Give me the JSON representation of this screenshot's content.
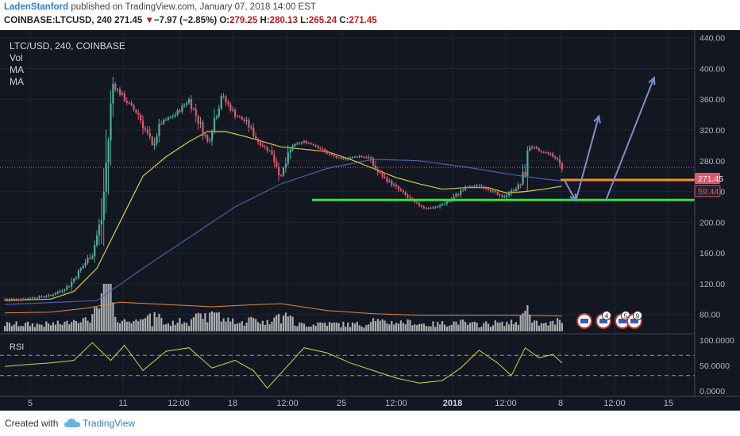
{
  "header": {
    "author": "LadenStanford",
    "published_text": " published on TradingView.com, January 07, 2018 14:00 EST",
    "symbol_interval": "COINBASE:LTCUSD, 240",
    "last": "271.45",
    "change_arrow": "▼",
    "change": "−7.97 (−2.85%)",
    "open_label": "O:",
    "open": "279.25",
    "high_label": "H:",
    "high": "280.13",
    "low_label": "L:",
    "low": "265.24",
    "close_label": "C:",
    "close": "271.45"
  },
  "legend": {
    "title": "LTC/USD, 240, COINBASE",
    "vol": "Vol",
    "ma1": "MA",
    "ma2": "MA"
  },
  "price_badges": {
    "last_price": "271.45",
    "countdown": "59:44"
  },
  "rsi_panel": {
    "label": "RSI"
  },
  "footer": {
    "created_with": "Created with",
    "brand": "TradingView"
  },
  "colors": {
    "background": "#131722",
    "up_candle": "#4caf9a",
    "down_candle": "#e0566b",
    "ma_fast": "#d7d13a",
    "ma_slow": "#4d5fa8",
    "volume": "#c8c8c8",
    "volume_ma": "#e08a3c",
    "support_line": "#32e632",
    "resistance_line": "#f5921e",
    "projection_arrows": "#7f8fc8",
    "rsi_line": "#d8d24a",
    "last_price_badge": "#e0566b"
  },
  "event_markers": [
    "4",
    "5",
    "9"
  ],
  "chart_data": {
    "type": "candlestick",
    "title": "LTC/USD, 240, COINBASE",
    "price_axis": {
      "ticks": [
        "440.00",
        "400.00",
        "360.00",
        "320.00",
        "280.00",
        "240.00",
        "200.00",
        "160.00",
        "120.00",
        "80.00"
      ],
      "range": [
        58,
        450
      ]
    },
    "rsi_axis": {
      "ticks": [
        "100.0000",
        "50.0000",
        "0.0000"
      ],
      "range": [
        -8,
        108
      ],
      "bands": [
        70,
        30
      ]
    },
    "time_axis": {
      "ticks": [
        "5",
        "11",
        "12:00",
        "18",
        "12:00",
        "25",
        "12:00",
        "2018",
        "12:00",
        "8",
        "12:00",
        "15"
      ]
    },
    "price_path": [
      [
        0,
        100
      ],
      [
        8,
        100
      ],
      [
        13,
        102
      ],
      [
        20,
        105
      ],
      [
        25,
        112
      ],
      [
        28,
        118
      ],
      [
        32,
        135
      ],
      [
        38,
        160
      ],
      [
        42,
        205
      ],
      [
        47,
        380
      ],
      [
        52,
        360
      ],
      [
        58,
        340
      ],
      [
        64,
        300
      ],
      [
        68,
        330
      ],
      [
        74,
        340
      ],
      [
        80,
        360
      ],
      [
        88,
        305
      ],
      [
        94,
        365
      ],
      [
        100,
        340
      ],
      [
        105,
        330
      ],
      [
        110,
        305
      ],
      [
        116,
        290
      ],
      [
        120,
        260
      ],
      [
        125,
        300
      ],
      [
        130,
        305
      ],
      [
        135,
        300
      ],
      [
        140,
        290
      ],
      [
        146,
        282
      ],
      [
        150,
        284
      ],
      [
        154,
        286
      ],
      [
        158,
        284
      ],
      [
        162,
        265
      ],
      [
        168,
        250
      ],
      [
        172,
        240
      ],
      [
        178,
        225
      ],
      [
        183,
        218
      ],
      [
        188,
        220
      ],
      [
        194,
        230
      ],
      [
        200,
        245
      ],
      [
        206,
        248
      ],
      [
        212,
        240
      ],
      [
        216,
        232
      ],
      [
        220,
        240
      ],
      [
        224,
        250
      ],
      [
        226,
        268
      ],
      [
        228,
        300
      ],
      [
        232,
        292
      ],
      [
        236,
        290
      ],
      [
        240,
        282
      ],
      [
        242,
        270
      ]
    ],
    "ma_fast_path": [
      [
        0,
        98
      ],
      [
        20,
        100
      ],
      [
        30,
        110
      ],
      [
        40,
        140
      ],
      [
        50,
        200
      ],
      [
        60,
        260
      ],
      [
        70,
        285
      ],
      [
        80,
        305
      ],
      [
        88,
        318
      ],
      [
        96,
        318
      ],
      [
        104,
        312
      ],
      [
        112,
        305
      ],
      [
        120,
        298
      ],
      [
        130,
        295
      ],
      [
        140,
        292
      ],
      [
        150,
        282
      ],
      [
        160,
        270
      ],
      [
        170,
        258
      ],
      [
        180,
        250
      ],
      [
        190,
        243
      ],
      [
        200,
        245
      ],
      [
        210,
        245
      ],
      [
        218,
        238
      ],
      [
        226,
        240
      ],
      [
        234,
        243
      ],
      [
        242,
        247
      ]
    ],
    "ma_slow_path": [
      [
        0,
        93
      ],
      [
        40,
        98
      ],
      [
        60,
        140
      ],
      [
        80,
        180
      ],
      [
        100,
        220
      ],
      [
        120,
        250
      ],
      [
        140,
        270
      ],
      [
        160,
        282
      ],
      [
        180,
        280
      ],
      [
        200,
        272
      ],
      [
        220,
        262
      ],
      [
        235,
        256
      ],
      [
        242,
        254
      ]
    ],
    "volume_ma_path": [
      [
        0,
        82
      ],
      [
        20,
        83
      ],
      [
        35,
        88
      ],
      [
        50,
        96
      ],
      [
        70,
        93
      ],
      [
        90,
        90
      ],
      [
        110,
        93
      ],
      [
        120,
        94
      ],
      [
        140,
        85
      ],
      [
        160,
        81
      ],
      [
        180,
        79
      ],
      [
        200,
        79
      ],
      [
        220,
        79
      ],
      [
        242,
        78
      ]
    ],
    "rsi_path": [
      [
        0,
        48
      ],
      [
        10,
        52
      ],
      [
        20,
        55
      ],
      [
        30,
        60
      ],
      [
        38,
        95
      ],
      [
        46,
        60
      ],
      [
        52,
        90
      ],
      [
        60,
        40
      ],
      [
        70,
        78
      ],
      [
        80,
        85
      ],
      [
        90,
        45
      ],
      [
        100,
        60
      ],
      [
        108,
        40
      ],
      [
        114,
        5
      ],
      [
        122,
        45
      ],
      [
        130,
        85
      ],
      [
        140,
        75
      ],
      [
        150,
        55
      ],
      [
        160,
        40
      ],
      [
        170,
        25
      ],
      [
        180,
        15
      ],
      [
        190,
        20
      ],
      [
        198,
        45
      ],
      [
        206,
        80
      ],
      [
        214,
        55
      ],
      [
        220,
        30
      ],
      [
        226,
        85
      ],
      [
        232,
        65
      ],
      [
        238,
        72
      ],
      [
        242,
        55
      ]
    ],
    "horizontal_levels": [
      {
        "name": "support",
        "value": 229
      },
      {
        "name": "resistance",
        "value": 255
      }
    ],
    "last_price": 271.45,
    "projection_arrows": [
      [
        [
          243,
          255
        ],
        [
          248,
          228
        ]
      ],
      [
        [
          248,
          228
        ],
        [
          258,
          338
        ]
      ],
      [
        [
          261,
          228
        ],
        [
          282,
          388
        ]
      ]
    ]
  }
}
